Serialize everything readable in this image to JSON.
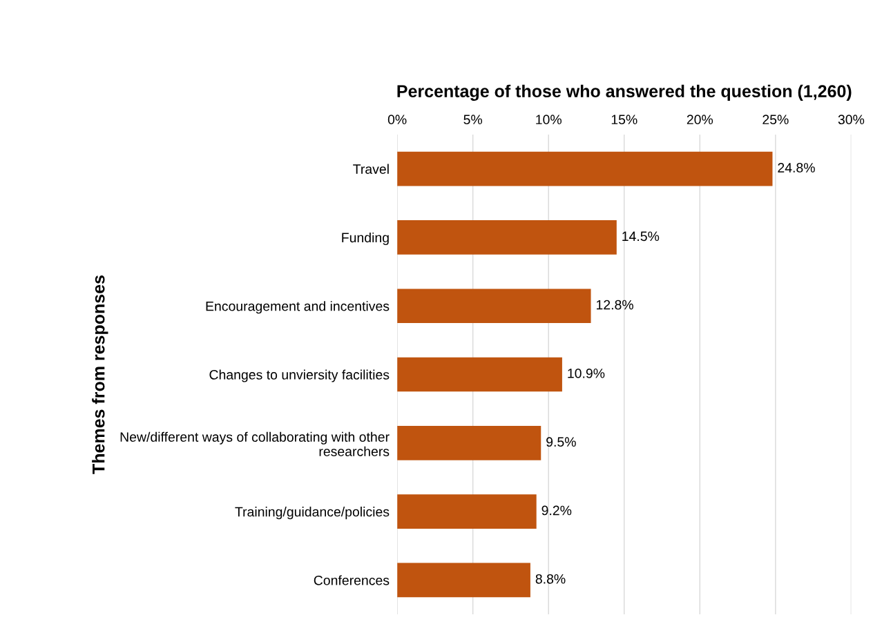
{
  "chart_data": {
    "type": "bar",
    "orientation": "horizontal",
    "xlabel": "Percentage of those who answered the question (1,260)",
    "ylabel": "Themes from responses",
    "categories": [
      "Travel",
      "Funding",
      "Encouragement and incentives",
      "Changes to unviersity facilities",
      "New/different ways of collaborating with other\nresearchers",
      "Training/guidance/policies",
      "Conferences"
    ],
    "values": [
      24.8,
      14.5,
      12.8,
      10.9,
      9.5,
      9.2,
      8.8
    ],
    "value_labels": [
      "24.8%",
      "14.5%",
      "12.8%",
      "10.9%",
      "9.5%",
      "9.2%",
      "8.8%"
    ],
    "color": "#c0540f",
    "xlim": [
      0,
      30
    ],
    "xticks": [
      {
        "value": 0,
        "label": "0%"
      },
      {
        "value": 5,
        "label": "5%"
      },
      {
        "value": 10,
        "label": "10%"
      },
      {
        "value": 15,
        "label": "15%"
      },
      {
        "value": 20,
        "label": "20%"
      },
      {
        "value": 25,
        "label": "25%"
      },
      {
        "value": 30,
        "label": "30%"
      }
    ],
    "grid": "x",
    "legend": false
  }
}
